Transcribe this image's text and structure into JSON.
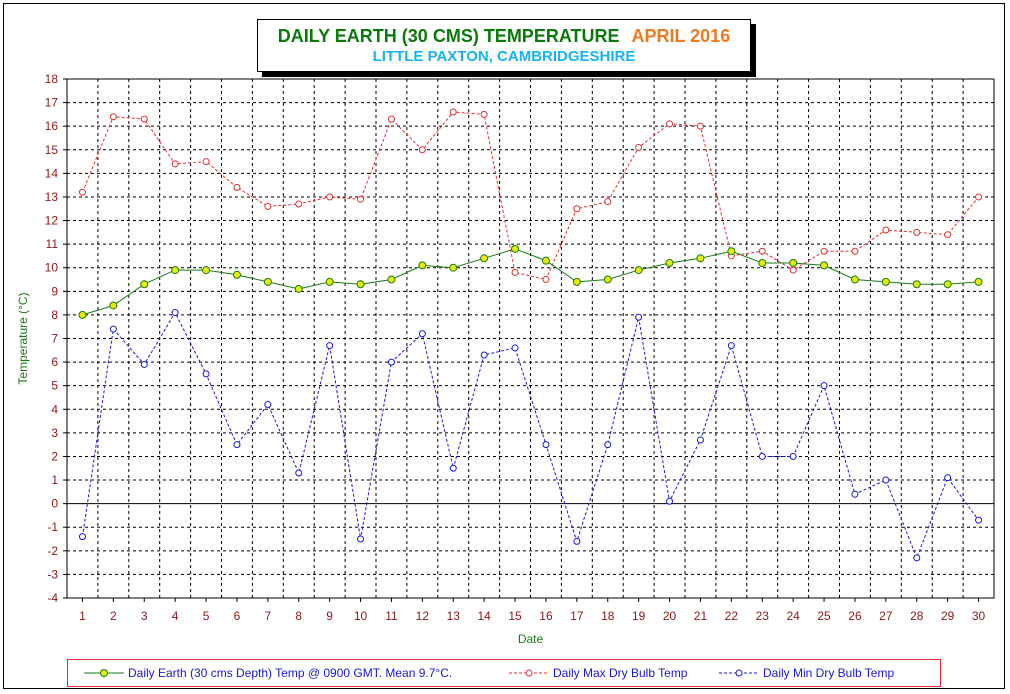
{
  "title": {
    "main": "DAILY EARTH (30 CMS) TEMPERATURE",
    "period": "APRIL 2016",
    "subtitle": "LITTLE PAXTON, CAMBRIDGESHIRE"
  },
  "colors": {
    "title_main": "#0a7a0a",
    "title_period": "#f07a1e",
    "subtitle": "#18b4f0",
    "axis_text": "#8b1a1a",
    "earth_series": "#1a7a1a",
    "earth_marker": "#e8f000",
    "max_series": "#e03030",
    "min_series": "#1a1acc"
  },
  "chart_data": {
    "type": "line",
    "xlabel": "Date",
    "ylabel": "Temperature (°C)",
    "ylim": [
      -4,
      18
    ],
    "yticks": [
      -4,
      -3,
      -2,
      -1,
      0,
      1,
      2,
      3,
      4,
      5,
      6,
      7,
      8,
      9,
      10,
      11,
      12,
      13,
      14,
      15,
      16,
      17,
      18
    ],
    "x": [
      1,
      2,
      3,
      4,
      5,
      6,
      7,
      8,
      9,
      10,
      11,
      12,
      13,
      14,
      15,
      16,
      17,
      18,
      19,
      20,
      21,
      22,
      23,
      24,
      25,
      26,
      27,
      28,
      29,
      30
    ],
    "grid": true,
    "legend_position": "bottom",
    "series": [
      {
        "name": "Daily Earth (30 cms Depth) Temp @ 0900 GMT. Mean 9.7°C.",
        "style": "solid",
        "values": [
          8.0,
          8.4,
          9.3,
          9.9,
          9.9,
          9.7,
          9.4,
          9.1,
          9.4,
          9.3,
          9.5,
          10.1,
          10.0,
          10.4,
          10.8,
          10.3,
          9.4,
          9.5,
          9.9,
          10.2,
          10.4,
          10.7,
          10.2,
          10.2,
          10.1,
          9.5,
          9.4,
          9.3,
          9.3,
          9.4
        ]
      },
      {
        "name": "Daily Max Dry Bulb Temp",
        "style": "dashed",
        "values": [
          13.2,
          16.4,
          16.3,
          14.4,
          14.5,
          13.4,
          12.6,
          12.7,
          13.0,
          12.9,
          16.3,
          15.0,
          16.6,
          16.5,
          9.8,
          9.5,
          12.5,
          12.8,
          15.1,
          16.1,
          16.0,
          10.5,
          10.7,
          9.9,
          10.7,
          10.7,
          11.6,
          11.5,
          11.4,
          13.0
        ]
      },
      {
        "name": "Daily Min Dry Bulb Temp",
        "style": "dashed",
        "values": [
          -1.4,
          7.4,
          5.9,
          8.1,
          5.5,
          2.5,
          4.2,
          1.3,
          6.7,
          -1.5,
          6.0,
          7.2,
          1.5,
          6.3,
          6.6,
          2.5,
          -1.6,
          2.5,
          7.9,
          0.1,
          2.7,
          6.7,
          2.0,
          2.0,
          5.0,
          0.4,
          1.0,
          -2.3,
          1.1,
          -0.7
        ]
      }
    ]
  }
}
